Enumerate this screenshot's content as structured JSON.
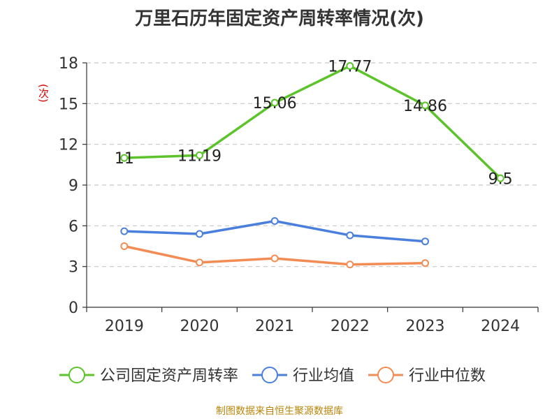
{
  "title": "万里石历年固定资产周转率情况(次)",
  "unit_label": "(次)",
  "source": "制图数据来自恒生聚源数据库",
  "chart_data": {
    "type": "line",
    "title": "万里石历年固定资产周转率情况(次)",
    "ylabel": "(次)",
    "xlabel": "",
    "categories": [
      "2019",
      "2020",
      "2021",
      "2022",
      "2023",
      "2024"
    ],
    "ylim": [
      0,
      18
    ],
    "yticks": [
      0,
      3,
      6,
      9,
      12,
      15,
      18
    ],
    "grid": true,
    "legend_position": "bottom",
    "series": [
      {
        "name": "公司固定资产周转率",
        "color": "#5cc42a",
        "values": [
          11,
          11.19,
          15.06,
          17.77,
          14.86,
          9.5
        ],
        "labels": [
          "11",
          "11.19",
          "15.06",
          "17.77",
          "14.86",
          "9.5"
        ]
      },
      {
        "name": "行业均值",
        "color": "#4a7fdb",
        "values": [
          5.6,
          5.4,
          6.35,
          5.3,
          4.85,
          null
        ]
      },
      {
        "name": "行业中位数",
        "color": "#f28c55",
        "values": [
          4.5,
          3.3,
          3.6,
          3.15,
          3.25,
          null
        ]
      }
    ]
  }
}
